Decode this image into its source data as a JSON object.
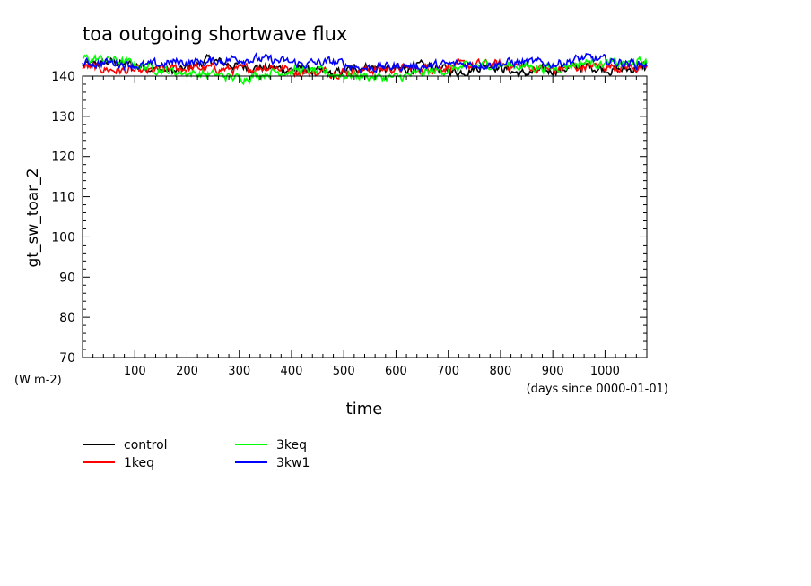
{
  "chart_data": {
    "type": "line",
    "title": "toa outgoing shortwave flux",
    "xlabel": "time",
    "x_units": "(days since 0000-01-01)",
    "ylabel": "gt_sw_toar_2",
    "y_units": "(W m-2)",
    "xlim": [
      0,
      1080
    ],
    "ylim": [
      70,
      140
    ],
    "x_ticks": [
      100,
      200,
      300,
      400,
      500,
      600,
      700,
      800,
      900,
      1000
    ],
    "y_ticks": [
      70,
      80,
      90,
      100,
      110,
      120,
      130,
      140
    ],
    "grid": false,
    "legend_position": "bottom-left",
    "series": [
      {
        "name": "control",
        "color": "#000000",
        "x": [
          0,
          60,
          120,
          180,
          240,
          300,
          360,
          420,
          480,
          540,
          600,
          660,
          720,
          780,
          840,
          900,
          960,
          1020,
          1080
        ],
        "values": [
          142.5,
          143.5,
          142.5,
          141.0,
          144.0,
          142.5,
          142.0,
          141.5,
          140.5,
          142.5,
          141.5,
          142.5,
          141.0,
          143.0,
          140.5,
          141.5,
          142.5,
          141.5,
          142.0
        ]
      },
      {
        "name": "1keq",
        "color": "#ff0000",
        "x": [
          0,
          60,
          120,
          180,
          240,
          300,
          360,
          420,
          480,
          540,
          600,
          660,
          720,
          780,
          840,
          900,
          960,
          1020,
          1080
        ],
        "values": [
          142.5,
          141.5,
          141.0,
          142.0,
          142.0,
          141.5,
          142.5,
          141.0,
          141.0,
          141.5,
          142.0,
          142.0,
          142.5,
          143.0,
          142.5,
          141.5,
          142.5,
          142.5,
          142.0
        ]
      },
      {
        "name": "3keq",
        "color": "#00ff00",
        "x": [
          0,
          60,
          120,
          180,
          240,
          300,
          360,
          420,
          480,
          540,
          600,
          660,
          720,
          780,
          840,
          900,
          960,
          1020,
          1080
        ],
        "values": [
          144.5,
          144.0,
          142.5,
          141.0,
          140.5,
          139.5,
          141.0,
          141.5,
          140.5,
          140.0,
          139.5,
          141.0,
          142.0,
          143.0,
          142.5,
          142.0,
          143.5,
          143.0,
          143.5
        ]
      },
      {
        "name": "3kw1",
        "color": "#0000ff",
        "x": [
          0,
          60,
          120,
          180,
          240,
          300,
          360,
          420,
          480,
          540,
          600,
          660,
          720,
          780,
          840,
          900,
          960,
          1020,
          1080
        ],
        "values": [
          143.0,
          143.5,
          142.5,
          143.5,
          143.5,
          144.5,
          144.0,
          143.0,
          143.5,
          142.0,
          142.5,
          142.5,
          143.0,
          143.0,
          143.5,
          143.0,
          144.5,
          143.5,
          143.0
        ]
      }
    ]
  }
}
